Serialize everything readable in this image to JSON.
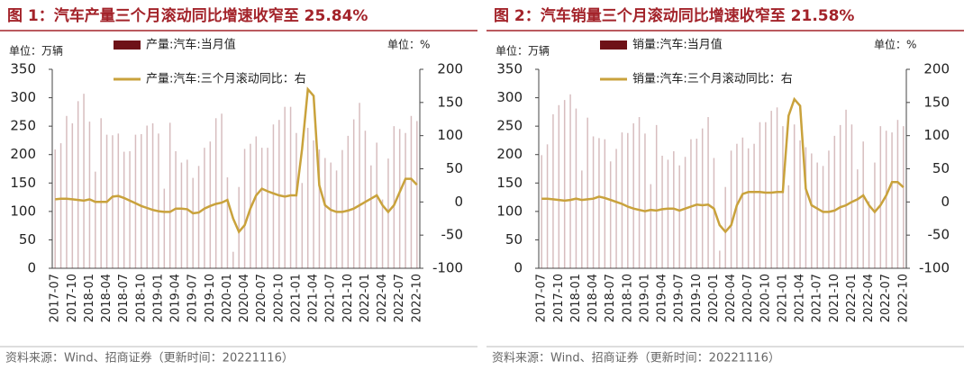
{
  "chart_data": [
    {
      "type": "bar_line",
      "title": "图 1：汽车产量三个月滚动同比增速收窄至 25.84%",
      "left_unit": "单位：万辆",
      "right_unit": "单位：%",
      "source": "资料来源：Wind、招商证券（更新时间：20221116）",
      "categories": [
        "2017-07",
        null,
        null,
        "2017-10",
        null,
        null,
        "2018-01",
        null,
        null,
        "2018-04",
        null,
        null,
        "2018-07",
        null,
        null,
        "2018-10",
        null,
        null,
        "2019-01",
        null,
        null,
        "2019-04",
        null,
        null,
        "2019-07",
        null,
        null,
        "2019-10",
        null,
        null,
        "2020-01",
        null,
        null,
        "2020-04",
        null,
        null,
        "2020-07",
        null,
        null,
        "2020-10",
        null,
        null,
        "2021-01",
        null,
        null,
        "2021-04",
        null,
        null,
        "2021-07",
        null,
        null,
        "2021-10",
        null,
        null,
        "2022-01",
        null,
        null,
        "2022-04",
        null,
        null,
        "2022-07",
        null,
        null,
        "2022-10"
      ],
      "series": [
        {
          "name": "产量:汽车:当月值",
          "type": "bar",
          "color": "#6e1218",
          "values": [
            209,
            220,
            268,
            255,
            294,
            307,
            258,
            170,
            264,
            235,
            234,
            237,
            205,
            206,
            235,
            236,
            251,
            255,
            237,
            140,
            256,
            206,
            186,
            191,
            159,
            180,
            212,
            223,
            264,
            272,
            160,
            29,
            143,
            210,
            219,
            232,
            212,
            212,
            253,
            261,
            284,
            284,
            238,
            150,
            247,
            225,
            209,
            194,
            186,
            172,
            208,
            233,
            262,
            291,
            242,
            181,
            221,
            121,
            193,
            250,
            245,
            238,
            268,
            259
          ]
        },
        {
          "name": "产量:汽车:三个月滚动同比：右",
          "type": "line",
          "axis": "y2",
          "color": "#c9a23c",
          "values": [
            4,
            5,
            5,
            4,
            3,
            2,
            4,
            0,
            0,
            0,
            8,
            9,
            6,
            2,
            -2,
            -6,
            -9,
            -12,
            -14,
            -15,
            -15,
            -10,
            -10,
            -11,
            -17,
            -16,
            -10,
            -6,
            -3,
            -1,
            3,
            -25,
            -45,
            -35,
            -10,
            10,
            20,
            16,
            13,
            10,
            8,
            10,
            10,
            80,
            170,
            160,
            25,
            -5,
            -12,
            -15,
            -15,
            -13,
            -10,
            -5,
            0,
            5,
            10,
            -5,
            -15,
            -5,
            15,
            35,
            35,
            26
          ]
        }
      ],
      "ylim": [
        0,
        350
      ],
      "yticks": [
        0,
        50,
        100,
        150,
        200,
        250,
        300,
        350
      ],
      "y2lim": [
        -100,
        200
      ],
      "y2ticks": [
        -100,
        -50,
        0,
        50,
        100,
        150,
        200
      ]
    },
    {
      "type": "bar_line",
      "title": "图 2：汽车销量三个月滚动同比增速收窄至 21.58%",
      "left_unit": "单位：万辆",
      "right_unit": "单位：%",
      "source": "资料来源：Wind、招商证券（更新时间：20221116）",
      "categories": [
        "2017-07",
        null,
        null,
        "2017-10",
        null,
        null,
        "2018-01",
        null,
        null,
        "2018-04",
        null,
        null,
        "2018-07",
        null,
        null,
        "2018-10",
        null,
        null,
        "2019-01",
        null,
        null,
        "2019-04",
        null,
        null,
        "2019-07",
        null,
        null,
        "2019-10",
        null,
        null,
        "2020-01",
        null,
        null,
        "2020-04",
        null,
        null,
        "2020-07",
        null,
        null,
        "2020-10",
        null,
        null,
        "2021-01",
        null,
        null,
        "2021-04",
        null,
        null,
        "2021-07",
        null,
        null,
        "2021-10",
        null,
        null,
        "2022-01",
        null,
        null,
        "2022-04",
        null,
        null,
        "2022-07",
        null,
        null,
        "2022-10"
      ],
      "series": [
        {
          "name": "销量:汽车:当月值",
          "type": "bar",
          "color": "#6e1218",
          "values": [
            199,
            218,
            271,
            287,
            296,
            306,
            281,
            172,
            265,
            232,
            229,
            227,
            188,
            210,
            239,
            238,
            255,
            266,
            237,
            148,
            252,
            198,
            191,
            206,
            181,
            196,
            227,
            228,
            246,
            266,
            194,
            31,
            143,
            207,
            219,
            230,
            211,
            219,
            257,
            257,
            277,
            283,
            250,
            146,
            253,
            225,
            213,
            202,
            186,
            180,
            207,
            233,
            252,
            279,
            253,
            174,
            223,
            118,
            186,
            250,
            242,
            239,
            261,
            250
          ]
        },
        {
          "name": "销量:汽车:三个月滚动同比：右",
          "type": "line",
          "axis": "y2",
          "color": "#c9a23c",
          "values": [
            5,
            5,
            4,
            3,
            2,
            3,
            5,
            3,
            4,
            5,
            8,
            6,
            3,
            0,
            -3,
            -7,
            -10,
            -12,
            -14,
            -12,
            -13,
            -11,
            -10,
            -10,
            -13,
            -10,
            -7,
            -4,
            -5,
            -4,
            -10,
            -35,
            -45,
            -35,
            -5,
            12,
            15,
            15,
            15,
            14,
            14,
            15,
            15,
            130,
            155,
            145,
            20,
            -5,
            -10,
            -15,
            -15,
            -13,
            -8,
            -5,
            0,
            4,
            10,
            -5,
            -15,
            -5,
            10,
            30,
            30,
            22
          ]
        }
      ],
      "ylim": [
        0,
        350
      ],
      "yticks": [
        0,
        50,
        100,
        150,
        200,
        250,
        300,
        350
      ],
      "y2lim": [
        -100,
        200
      ],
      "y2ticks": [
        -100,
        -50,
        0,
        50,
        100,
        150,
        200
      ]
    }
  ]
}
